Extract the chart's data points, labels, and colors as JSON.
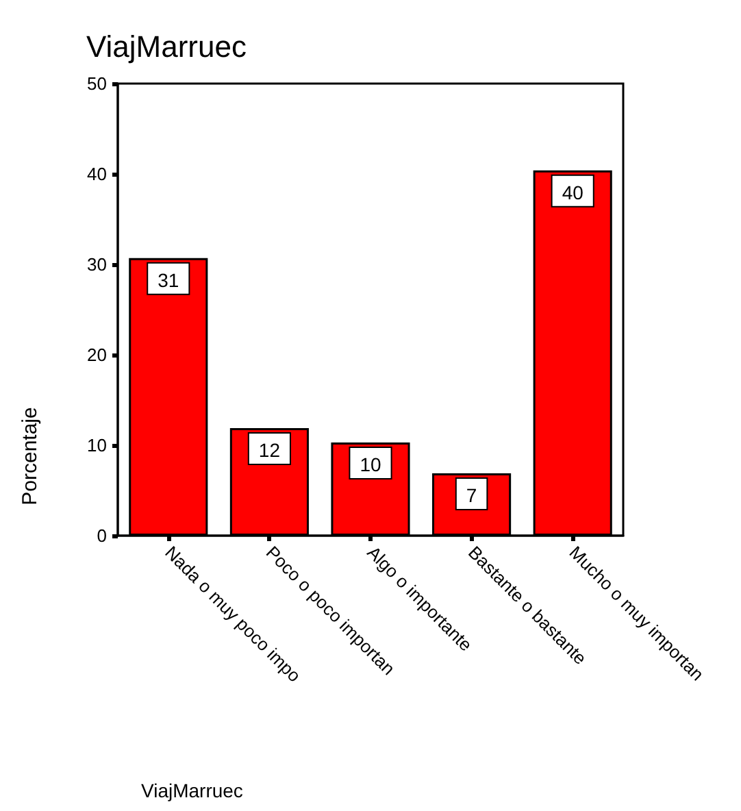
{
  "chart_data": {
    "type": "bar",
    "title": "ViajMarruec",
    "xlabel": "ViajMarruec",
    "ylabel": "Porcentaje",
    "categories": [
      "Nada o muy poco impo",
      "Poco o poco importan",
      "Algo o importante",
      "Bastante o bastante",
      "Mucho o muy importan"
    ],
    "values": [
      30.7,
      11.9,
      10.3,
      6.9,
      40.4
    ],
    "value_labels": [
      "31",
      "12",
      "10",
      "7",
      "40"
    ],
    "color": "#ff0000",
    "ylim": [
      0,
      50
    ],
    "yticks": [
      0,
      10,
      20,
      30,
      40,
      50
    ],
    "grid": false
  }
}
